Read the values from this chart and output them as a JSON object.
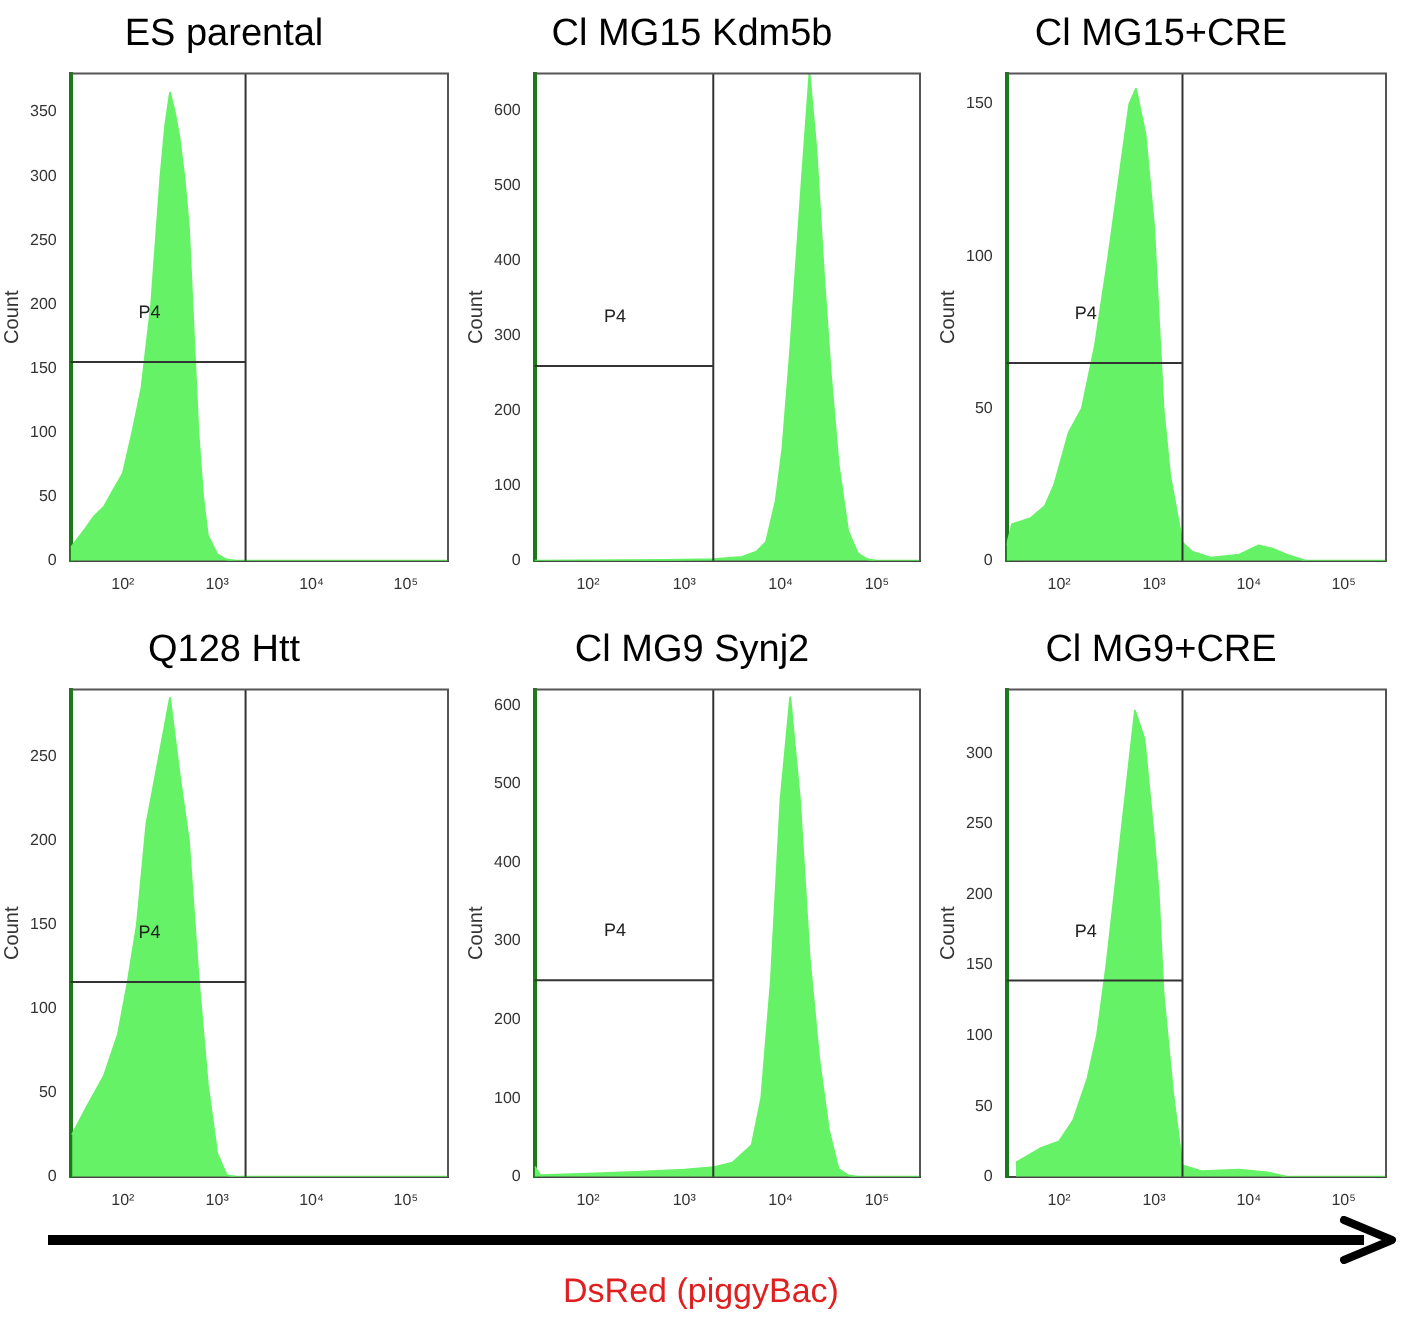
{
  "chart_data": [
    {
      "type": "area",
      "title": "ES parental",
      "ylabel": "Count",
      "log": "x",
      "grid": false,
      "legend": false,
      "marker": "none",
      "xlim": [
        28,
        280000
      ],
      "xticks": [
        {
          "value": 100,
          "label": "10²"
        },
        {
          "value": 1000,
          "label": "10³"
        },
        {
          "value": 10000,
          "label": "10⁴"
        },
        {
          "value": 100000,
          "label": "10⁵"
        }
      ],
      "ylim": [
        0,
        380
      ],
      "yticks": [
        0,
        50,
        100,
        150,
        200,
        250,
        300,
        350
      ],
      "ref_lines": [
        {
          "axis": "x",
          "value": 2000
        },
        {
          "axis": "y",
          "value": 155,
          "label": "P4"
        }
      ],
      "series": [
        {
          "color": "#66f266",
          "x": [
            28,
            40,
            50,
            63,
            79,
            100,
            126,
            158,
            200,
            251,
            282,
            316,
            355,
            398,
            447,
            501,
            562,
            631,
            708,
            794,
            1000,
            1259,
            1585,
            280000
          ],
          "values": [
            10,
            25,
            35,
            42,
            55,
            68,
            100,
            135,
            200,
            300,
            340,
            365,
            350,
            330,
            300,
            260,
            180,
            100,
            50,
            20,
            5,
            1,
            0,
            0
          ]
        }
      ]
    },
    {
      "type": "area",
      "title": "Cl MG15 Kdm5b",
      "ylabel": "Count",
      "log": "x",
      "grid": false,
      "legend": false,
      "marker": "none",
      "xlim": [
        28,
        280000
      ],
      "xticks": [
        {
          "value": 100,
          "label": "10²"
        },
        {
          "value": 1000,
          "label": "10³"
        },
        {
          "value": 10000,
          "label": "10⁴"
        },
        {
          "value": 100000,
          "label": "10⁵"
        }
      ],
      "ylim": [
        0,
        650
      ],
      "yticks": [
        0,
        100,
        200,
        300,
        400,
        500,
        600
      ],
      "ref_lines": [
        {
          "axis": "x",
          "value": 2000
        },
        {
          "axis": "y",
          "value": 260,
          "label": "P4"
        }
      ],
      "series": [
        {
          "color": "#66f266",
          "x": [
            28,
            631,
            1995,
            3981,
            5623,
            7079,
            8913,
            10471,
            12589,
            15849,
            19953,
            23442,
            28184,
            33113,
            39811,
            50119,
            63096,
            79433,
            100000,
            280000
          ],
          "values": [
            0,
            1,
            2,
            5,
            12,
            25,
            80,
            150,
            280,
            470,
            650,
            550,
            380,
            250,
            130,
            40,
            10,
            2,
            0,
            0
          ]
        }
      ]
    },
    {
      "type": "area",
      "title": "Cl MG15+CRE",
      "ylabel": "Count",
      "log": "x",
      "grid": false,
      "legend": false,
      "marker": "none",
      "xlim": [
        28,
        280000
      ],
      "xticks": [
        {
          "value": 100,
          "label": "10²"
        },
        {
          "value": 1000,
          "label": "10³"
        },
        {
          "value": 10000,
          "label": "10⁴"
        },
        {
          "value": 100000,
          "label": "10⁵"
        }
      ],
      "ylim": [
        0,
        160
      ],
      "yticks": [
        0,
        50,
        100,
        150
      ],
      "ref_lines": [
        {
          "axis": "x",
          "value": 2000
        },
        {
          "axis": "y",
          "value": 65,
          "label": "P4"
        }
      ],
      "series": [
        {
          "color": "#66f266",
          "x": [
            28,
            32,
            50,
            71,
            89,
            126,
            174,
            240,
            331,
            427,
            550,
            646,
            813,
            1000,
            1259,
            1479,
            1995,
            2512,
            3981,
            7943,
            12589,
            17783,
            25119,
            39811,
            280000
          ],
          "values": [
            5,
            12,
            14,
            18,
            25,
            42,
            50,
            71,
            100,
            125,
            150,
            155,
            140,
            110,
            50,
            28,
            6,
            3,
            1,
            2,
            5,
            4,
            2,
            0,
            0
          ]
        }
      ]
    },
    {
      "type": "area",
      "title": "Q128 Htt",
      "ylabel": "Count",
      "log": "x",
      "grid": false,
      "legend": false,
      "marker": "none",
      "xlim": [
        28,
        280000
      ],
      "xticks": [
        {
          "value": 100,
          "label": "10²"
        },
        {
          "value": 1000,
          "label": "10³"
        },
        {
          "value": 10000,
          "label": "10⁴"
        },
        {
          "value": 100000,
          "label": "10⁵"
        }
      ],
      "ylim": [
        0,
        290
      ],
      "yticks": [
        0,
        50,
        100,
        150,
        200,
        250
      ],
      "ref_lines": [
        {
          "axis": "x",
          "value": 2000
        },
        {
          "axis": "y",
          "value": 116,
          "label": "P4"
        }
      ],
      "series": [
        {
          "color": "#66f266",
          "x": [
            29,
            40,
            63,
            89,
            112,
            141,
            178,
            224,
            282,
            316,
            398,
            501,
            631,
            794,
            1000,
            1259,
            1585,
            280000
          ],
          "values": [
            25,
            40,
            60,
            85,
            115,
            150,
            210,
            240,
            270,
            285,
            240,
            200,
            120,
            55,
            14,
            1,
            0,
            0
          ]
        }
      ]
    },
    {
      "type": "area",
      "title": "Cl MG9 Synj2",
      "ylabel": "Count",
      "xlabel": "DsRed (piggyBac)",
      "log": "x",
      "grid": false,
      "legend": false,
      "marker": "none",
      "xlim": [
        28,
        280000
      ],
      "xticks": [
        {
          "value": 100,
          "label": "10²"
        },
        {
          "value": 1000,
          "label": "10³"
        },
        {
          "value": 10000,
          "label": "10⁴"
        },
        {
          "value": 100000,
          "label": "10⁵"
        }
      ],
      "ylim": [
        0,
        620
      ],
      "yticks": [
        0,
        100,
        200,
        300,
        400,
        500,
        600
      ],
      "ref_lines": [
        {
          "axis": "x",
          "value": 2000
        },
        {
          "axis": "y",
          "value": 250,
          "label": "P4"
        }
      ],
      "series": [
        {
          "color": "#66f266",
          "x": [
            28,
            32,
            100,
            316,
            1000,
            1995,
            3162,
            5012,
            6310,
            7943,
            10000,
            12589,
            15849,
            19953,
            25119,
            31623,
            39811,
            50119,
            63096,
            280000
          ],
          "values": [
            13,
            2,
            4,
            6,
            9,
            12,
            18,
            40,
            100,
            250,
            480,
            610,
            480,
            280,
            150,
            60,
            10,
            2,
            0,
            0
          ]
        }
      ]
    },
    {
      "type": "area",
      "title": "Cl MG9+CRE",
      "ylabel": "Count",
      "log": "x",
      "grid": false,
      "legend": false,
      "marker": "none",
      "xlim": [
        28,
        280000
      ],
      "xticks": [
        {
          "value": 100,
          "label": "10²"
        },
        {
          "value": 1000,
          "label": "10³"
        },
        {
          "value": 10000,
          "label": "10⁴"
        },
        {
          "value": 100000,
          "label": "10⁵"
        }
      ],
      "ylim": [
        0,
        345
      ],
      "yticks": [
        0,
        50,
        100,
        150,
        200,
        250,
        300
      ],
      "ref_lines": [
        {
          "axis": "x",
          "value": 2000
        },
        {
          "axis": "y",
          "value": 139,
          "label": "P4"
        }
      ],
      "series": [
        {
          "color": "#66f266",
          "x": [
            35,
            63,
            100,
            141,
            200,
            251,
            316,
            398,
            501,
            631,
            794,
            1000,
            1122,
            1259,
            1585,
            1995,
            3162,
            7943,
            15849,
            25119,
            280000
          ],
          "values": [
            10,
            20,
            25,
            40,
            70,
            100,
            150,
            210,
            270,
            330,
            310,
            240,
            200,
            130,
            60,
            8,
            4,
            5,
            3,
            0,
            0
          ]
        }
      ]
    }
  ]
}
